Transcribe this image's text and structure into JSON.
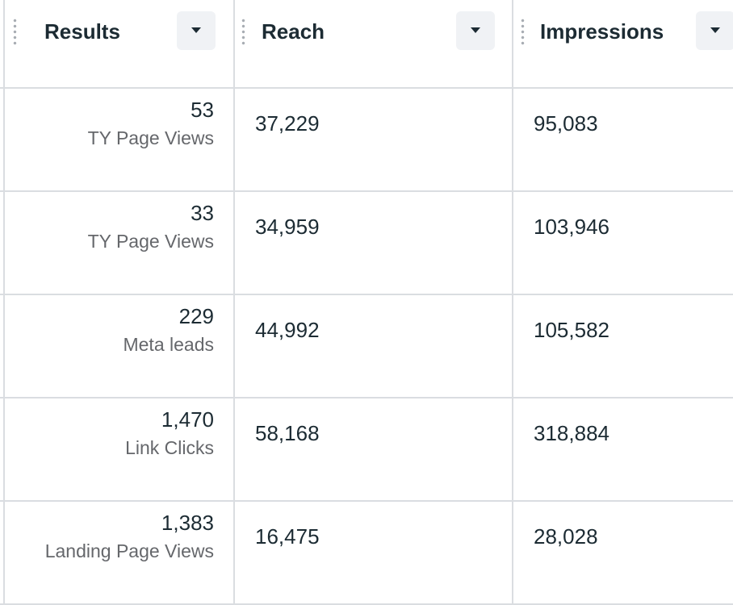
{
  "columns": [
    {
      "key": "results",
      "label": "Results",
      "sort_icon": "caret-down-icon"
    },
    {
      "key": "reach",
      "label": "Reach",
      "sort_icon": "caret-down-icon"
    },
    {
      "key": "impressions",
      "label": "Impressions",
      "sort_icon": "caret-down-icon"
    }
  ],
  "rows": [
    {
      "results": "53",
      "result_type": "TY Page Views",
      "reach": "37,229",
      "impressions": "95,083"
    },
    {
      "results": "33",
      "result_type": "TY Page Views",
      "reach": "34,959",
      "impressions": "103,946"
    },
    {
      "results": "229",
      "result_type": "Meta leads",
      "reach": "44,992",
      "impressions": "105,582"
    },
    {
      "results": "1,470",
      "result_type": "Link Clicks",
      "reach": "58,168",
      "impressions": "318,884"
    },
    {
      "results": "1,383",
      "result_type": "Landing Page Views",
      "reach": "16,475",
      "impressions": "28,028"
    }
  ]
}
